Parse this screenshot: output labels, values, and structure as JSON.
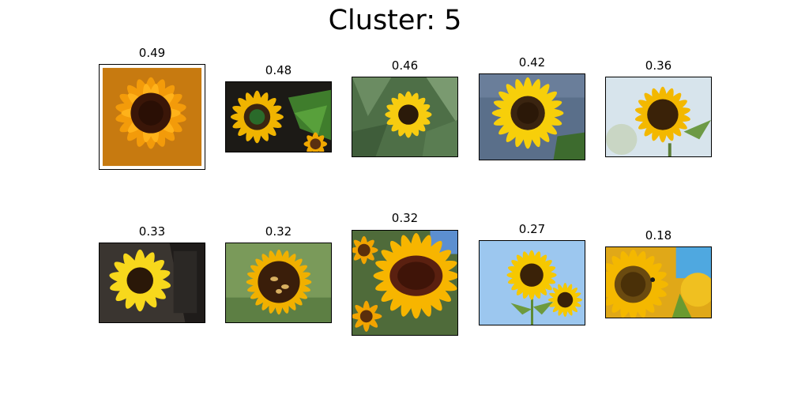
{
  "title": "Cluster: 5",
  "tiles": [
    {
      "score": "0.49",
      "icon": "sunflower-image"
    },
    {
      "score": "0.48",
      "icon": "sunflower-image"
    },
    {
      "score": "0.46",
      "icon": "sunflower-image"
    },
    {
      "score": "0.42",
      "icon": "sunflower-image"
    },
    {
      "score": "0.36",
      "icon": "sunflower-image"
    },
    {
      "score": "0.33",
      "icon": "sunflower-image"
    },
    {
      "score": "0.32",
      "icon": "sunflower-image"
    },
    {
      "score": "0.32",
      "icon": "sunflower-image"
    },
    {
      "score": "0.27",
      "icon": "sunflower-image"
    },
    {
      "score": "0.18",
      "icon": "sunflower-image"
    }
  ],
  "colors": {
    "petal": "#f5c400",
    "petal_dark": "#e39a00",
    "center": "#3a1e0a",
    "leaf": "#4f8a34",
    "sky": "#9cc7ef"
  }
}
